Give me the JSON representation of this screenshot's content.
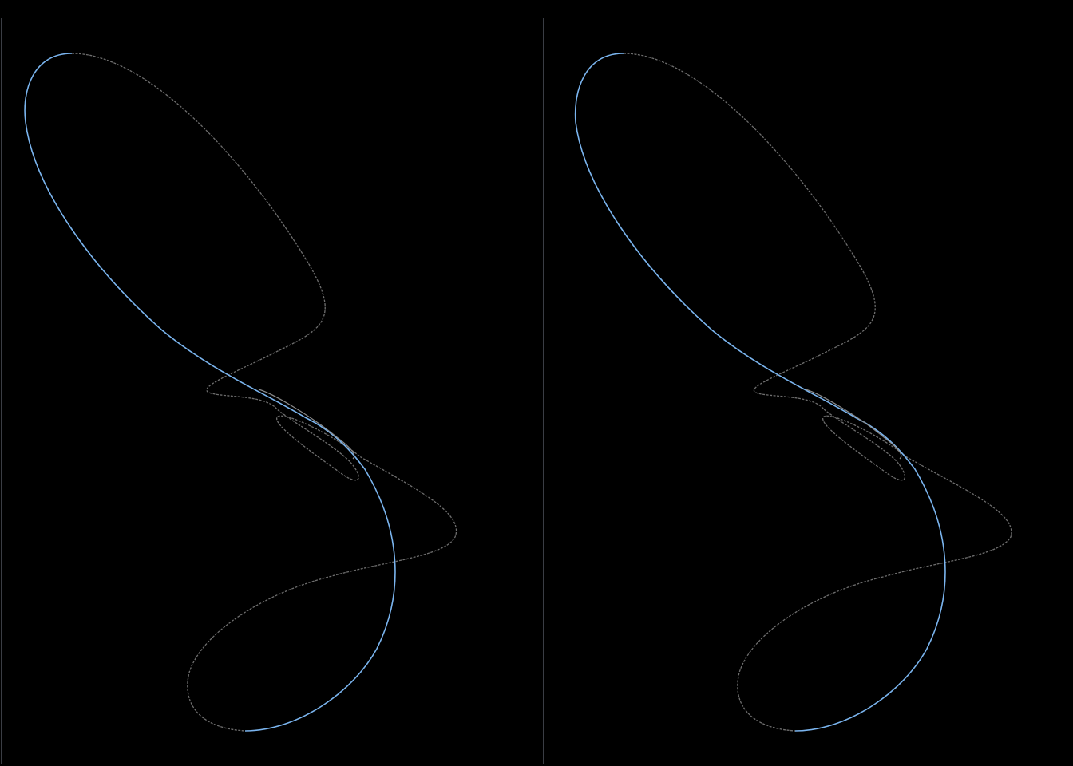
{
  "panels": [
    {
      "id": "left",
      "stroke_start": "#6e6e6e",
      "stroke_end": "#7ab4ee",
      "fill": "none"
    },
    {
      "id": "right",
      "stroke_start": "#6e6e6e",
      "stroke_end": "#7ab4ee",
      "fill": "none"
    }
  ],
  "colors": {
    "background": "#000000",
    "panel_border": "#3a3d44",
    "curve_faint": "#6e6e6e",
    "curve_bright": "#7ab4ee"
  },
  "icons": []
}
